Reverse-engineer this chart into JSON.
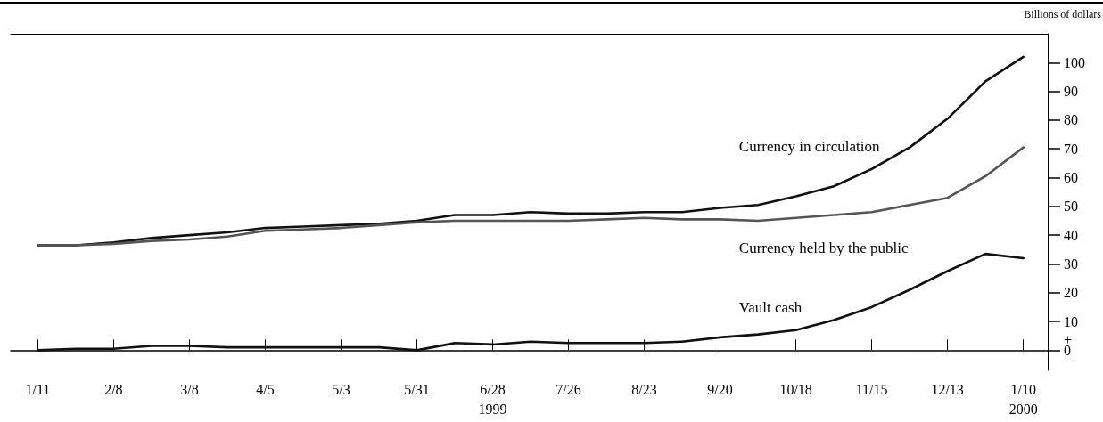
{
  "chart_data": {
    "type": "line",
    "ylabel": "Billions of dollars",
    "x": [
      "1999-01-11",
      "1999-01-25",
      "1999-02-08",
      "1999-02-22",
      "1999-03-08",
      "1999-03-22",
      "1999-04-05",
      "1999-04-19",
      "1999-05-03",
      "1999-05-17",
      "1999-05-31",
      "1999-06-14",
      "1999-06-28",
      "1999-07-12",
      "1999-07-26",
      "1999-08-09",
      "1999-08-23",
      "1999-09-06",
      "1999-09-20",
      "1999-10-04",
      "1999-10-18",
      "1999-11-01",
      "1999-11-15",
      "1999-11-29",
      "1999-12-13",
      "1999-12-27",
      "2000-01-10"
    ],
    "series": [
      {
        "name": "Currency in circulation",
        "color": "#111111",
        "values": [
          36.5,
          36.5,
          37.5,
          39,
          40,
          41,
          42.5,
          43,
          43.5,
          44,
          45,
          47,
          47,
          48,
          47.5,
          47.5,
          48,
          48,
          49.5,
          50.5,
          53.5,
          57,
          63,
          70.5,
          80.5,
          93.5,
          102
        ]
      },
      {
        "name": "Currency held by the public",
        "color": "#555555",
        "values": [
          36.5,
          36.5,
          37,
          38,
          38.5,
          39.5,
          41.5,
          42,
          42.5,
          43.5,
          44.5,
          45,
          45,
          45,
          45,
          45.5,
          46,
          45.5,
          45.5,
          45,
          46,
          47,
          48,
          50.5,
          53,
          60.5,
          70.5
        ]
      },
      {
        "name": "Vault cash",
        "color": "#111111",
        "values": [
          0,
          0.5,
          0.5,
          1.5,
          1.5,
          1,
          1,
          1,
          1,
          1,
          0,
          2.5,
          2,
          3,
          2.5,
          2.5,
          2.5,
          3,
          4.5,
          5.5,
          7,
          10.5,
          15,
          21,
          27.5,
          33.5,
          32
        ]
      }
    ],
    "xlim": [
      "1999-01-01",
      "2000-01-19"
    ],
    "xticks": [
      {
        "value": "1999-01-11",
        "label": "1/11"
      },
      {
        "value": "1999-02-08",
        "label": "2/8"
      },
      {
        "value": "1999-03-08",
        "label": "3/8"
      },
      {
        "value": "1999-04-05",
        "label": "4/5"
      },
      {
        "value": "1999-05-03",
        "label": "5/3"
      },
      {
        "value": "1999-05-31",
        "label": "5/31"
      },
      {
        "value": "1999-06-28",
        "label": "6/28\n1999"
      },
      {
        "value": "1999-07-26",
        "label": "7/26"
      },
      {
        "value": "1999-08-23",
        "label": "8/23"
      },
      {
        "value": "1999-09-20",
        "label": "9/20"
      },
      {
        "value": "1999-10-18",
        "label": "10/18"
      },
      {
        "value": "1999-11-15",
        "label": "11/15"
      },
      {
        "value": "1999-12-13",
        "label": "12/13"
      },
      {
        "value": "2000-01-10",
        "label": "1/10\n2000"
      }
    ],
    "ylim": [
      -7,
      110
    ],
    "yticks": [
      {
        "value": 0,
        "label": "+\n0\n−"
      },
      10,
      20,
      30,
      40,
      50,
      60,
      70,
      80,
      90,
      100
    ],
    "grid": false,
    "legend": false,
    "marker": "none",
    "line_style": "solid"
  }
}
